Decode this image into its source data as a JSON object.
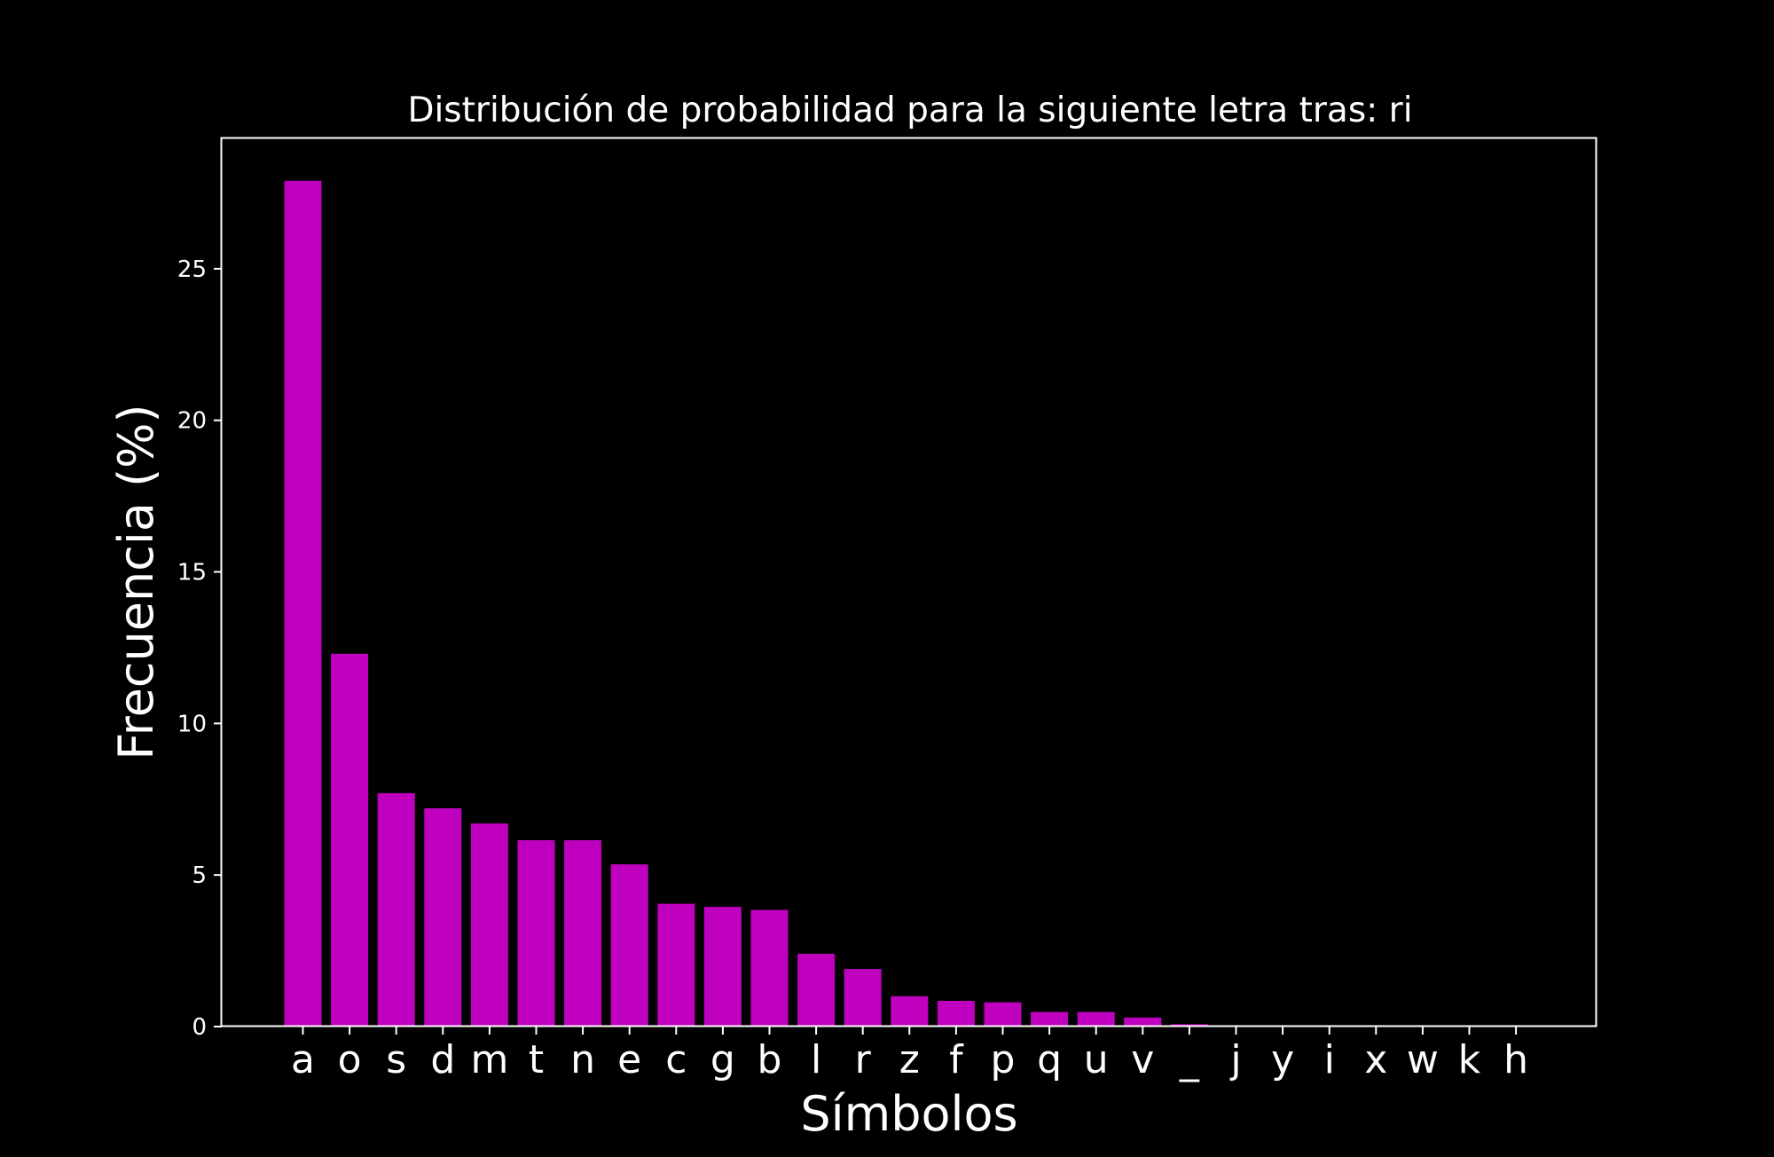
{
  "chart_data": {
    "type": "bar",
    "title": "Distribución de probabilidad para la siguiente letra tras: ri",
    "xlabel": "Símbolos",
    "ylabel": "Frecuencia (%)",
    "categories": [
      "a",
      "o",
      "s",
      "d",
      "m",
      "t",
      "n",
      "e",
      "c",
      "g",
      "b",
      "l",
      "r",
      "z",
      "f",
      "p",
      "q",
      "u",
      "v",
      "_",
      "j",
      "y",
      "i",
      "x",
      "w",
      "k",
      "h"
    ],
    "values": [
      27.9,
      12.3,
      7.7,
      7.2,
      6.7,
      6.15,
      6.15,
      5.35,
      4.05,
      3.95,
      3.85,
      2.4,
      1.9,
      1.0,
      0.85,
      0.8,
      0.48,
      0.48,
      0.3,
      0.08,
      0.02,
      0,
      0,
      0,
      0,
      0,
      0
    ],
    "yticks": [
      "0",
      "5",
      "10",
      "15",
      "20",
      "25"
    ],
    "ylim": [
      0,
      29.3
    ],
    "grid": false,
    "colors": {
      "bar": "#bf00bf",
      "background": "#000000",
      "foreground": "#ffffff"
    }
  }
}
